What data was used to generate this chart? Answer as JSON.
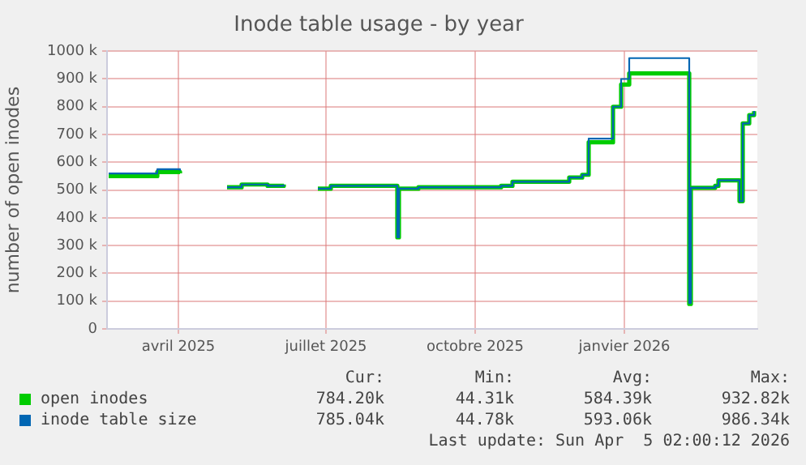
{
  "chart_data": {
    "type": "step",
    "title": "Inode table usage - by year",
    "ylabel": "number of open inodes",
    "xlim": [
      "2025-03-03",
      "2026-04-08"
    ],
    "xticks": [
      {
        "value": "2025-04-16",
        "label": "avril 2025"
      },
      {
        "value": "2025-07-16",
        "label": "juillet 2025"
      },
      {
        "value": "2025-10-16",
        "label": "octobre 2025"
      },
      {
        "value": "2026-01-16",
        "label": "janvier 2026"
      }
    ],
    "ylim": [
      0,
      1000
    ],
    "yticks": [
      0,
      {
        "value": 100,
        "label": "100 k"
      },
      {
        "value": 200,
        "label": "200 k"
      },
      {
        "value": 300,
        "label": "300 k"
      },
      {
        "value": 400,
        "label": "400 k"
      },
      {
        "value": 500,
        "label": "500 k"
      },
      {
        "value": 600,
        "label": "600 k"
      },
      {
        "value": 700,
        "label": "700 k"
      },
      {
        "value": 800,
        "label": "800 k"
      },
      {
        "value": 900,
        "label": "900 k"
      },
      {
        "value": 1000,
        "label": "1000 k"
      }
    ],
    "grid": true,
    "legend": "bottom",
    "x": [
      "2025-03-04",
      "2025-04-03",
      "2025-04-17",
      "2025-05-09",
      "2025-05-16",
      "2025-05-25",
      "2025-06-10",
      "2025-06-20",
      "2025-07-02",
      "2025-07-11",
      "2025-07-19",
      "2025-08-29",
      "2025-08-30",
      "2025-09-11",
      "2025-11-01",
      "2025-11-08",
      "2025-12-13",
      "2025-12-21",
      "2025-12-25",
      "2026-01-09",
      "2026-01-14",
      "2026-01-19",
      "2026-02-25",
      "2026-02-26",
      "2026-03-13",
      "2026-03-15",
      "2026-03-28",
      "2026-03-30",
      "2026-04-03",
      "2026-04-06"
    ],
    "series": [
      {
        "name": "open inodes",
        "color": "#00cc00",
        "values": [
          550,
          565,
          560,
          null,
          510,
          520,
          515,
          520,
          null,
          505,
          515,
          330,
          505,
          510,
          515,
          530,
          545,
          555,
          672,
          800,
          880,
          920,
          90,
          508,
          515,
          535,
          460,
          740,
          770,
          784
        ]
      },
      {
        "name": "inode table size",
        "color": "#0066b3",
        "values": [
          560,
          575,
          570,
          null,
          510,
          520,
          515,
          520,
          null,
          505,
          515,
          330,
          505,
          510,
          515,
          530,
          545,
          555,
          685,
          800,
          900,
          975,
          93,
          508,
          515,
          535,
          460,
          740,
          770,
          785
        ]
      }
    ],
    "annotations": [
      "Cur:",
      "Min:",
      "Avg:",
      "Max:",
      "784.20k",
      "44.31k",
      "584.39k",
      "932.82k",
      "785.04k",
      "44.78k",
      "593.06k",
      "986.34k",
      "Last update: Sun Apr  5 02:00:12 2026"
    ]
  }
}
